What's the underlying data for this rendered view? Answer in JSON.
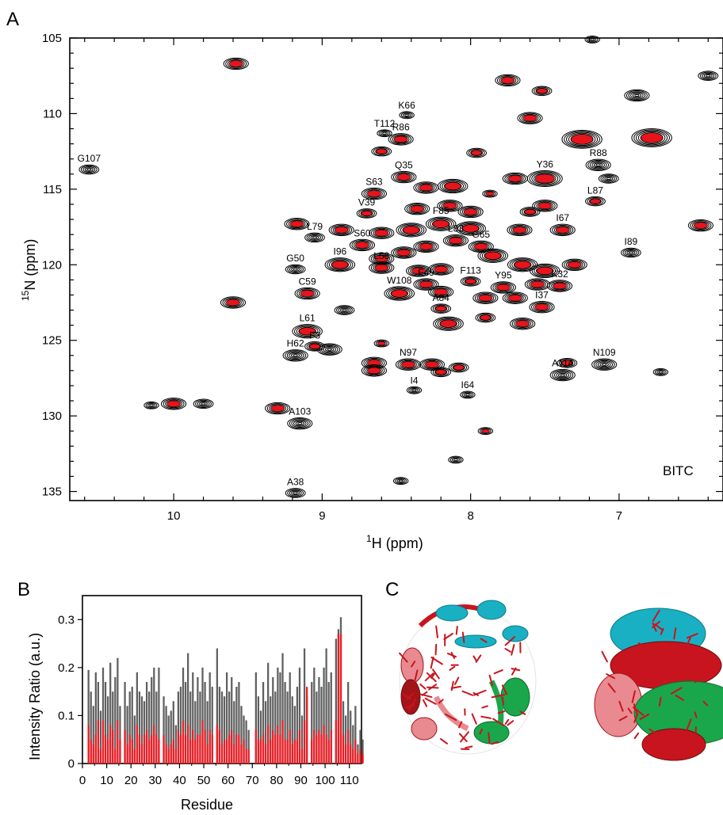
{
  "panels": {
    "a": "A",
    "b": "B",
    "c": "C"
  },
  "colors": {
    "ref": "#000000",
    "treated": "#e8141b",
    "bar_gray": "#606060",
    "bar_red": "#ee1c24",
    "helix_red": "#c8141e",
    "helix_cyan": "#1ab0c4",
    "helix_green": "#1aa64a",
    "helix_pink": "#e88a90",
    "helix_dark": "#a31419"
  },
  "chart_data": [
    {
      "type": "scatter",
      "title": "",
      "annotation": "BITC",
      "xlabel": {
        "main": "H",
        "sup": "1",
        "unit": "  (ppm)"
      },
      "ylabel": {
        "sup": "15",
        "main": "N  (ppm)"
      },
      "xlim": [
        10.7,
        6.3
      ],
      "ylim": [
        135.6,
        105
      ],
      "xticks": [
        "10",
        "9",
        "8",
        "7"
      ],
      "yticks": [
        "105",
        "110",
        "115",
        "120",
        "125",
        "130",
        "135"
      ],
      "peaks": [
        {
          "x": 10.57,
          "y": 113.7,
          "w": 2,
          "red": false,
          "label": "G107"
        },
        {
          "x": 9.58,
          "y": 106.7,
          "w": 3,
          "red": true,
          "label": ""
        },
        {
          "x": 8.43,
          "y": 110.1,
          "w": 1,
          "red": false,
          "label": "K66"
        },
        {
          "x": 8.58,
          "y": 111.3,
          "w": 1,
          "red": false,
          "label": "T112"
        },
        {
          "x": 8.47,
          "y": 111.7,
          "w": 3,
          "red": true,
          "label": "R86"
        },
        {
          "x": 8.6,
          "y": 112.5,
          "w": 2,
          "red": true,
          "label": ""
        },
        {
          "x": 7.96,
          "y": 112.6,
          "w": 2,
          "red": true,
          "label": ""
        },
        {
          "x": 7.75,
          "y": 107.8,
          "w": 3,
          "red": true,
          "label": ""
        },
        {
          "x": 7.52,
          "y": 108.5,
          "w": 2,
          "red": true,
          "label": ""
        },
        {
          "x": 7.6,
          "y": 110.3,
          "w": 3,
          "red": true,
          "label": ""
        },
        {
          "x": 7.25,
          "y": 111.7,
          "w": 6,
          "red": true,
          "label": ""
        },
        {
          "x": 6.78,
          "y": 111.6,
          "w": 6,
          "red": true,
          "label": ""
        },
        {
          "x": 6.88,
          "y": 108.8,
          "w": 3,
          "red": false,
          "label": ""
        },
        {
          "x": 6.4,
          "y": 107.5,
          "w": 2,
          "red": false,
          "label": ""
        },
        {
          "x": 6.45,
          "y": 117.4,
          "w": 3,
          "red": true,
          "label": ""
        },
        {
          "x": 7.14,
          "y": 113.4,
          "w": 3,
          "red": false,
          "label": "R88"
        },
        {
          "x": 7.07,
          "y": 114.3,
          "w": 2,
          "red": false,
          "label": ""
        },
        {
          "x": 7.5,
          "y": 114.3,
          "w": 5,
          "red": true,
          "label": "Y36"
        },
        {
          "x": 7.7,
          "y": 114.3,
          "w": 3,
          "red": true,
          "label": ""
        },
        {
          "x": 7.16,
          "y": 115.8,
          "w": 2,
          "red": true,
          "label": "L87"
        },
        {
          "x": 8.45,
          "y": 114.2,
          "w": 3,
          "red": true,
          "label": "Q35"
        },
        {
          "x": 8.3,
          "y": 114.9,
          "w": 3,
          "red": true,
          "label": ""
        },
        {
          "x": 8.12,
          "y": 114.8,
          "w": 4,
          "red": true,
          "label": ""
        },
        {
          "x": 8.65,
          "y": 115.3,
          "w": 3,
          "red": true,
          "label": "S63"
        },
        {
          "x": 8.36,
          "y": 116.3,
          "w": 3,
          "red": true,
          "label": ""
        },
        {
          "x": 8.14,
          "y": 116.1,
          "w": 3,
          "red": true,
          "label": ""
        },
        {
          "x": 8.0,
          "y": 116.5,
          "w": 3,
          "red": true,
          "label": ""
        },
        {
          "x": 7.87,
          "y": 115.3,
          "w": 1,
          "red": true,
          "label": ""
        },
        {
          "x": 7.5,
          "y": 116.1,
          "w": 3,
          "red": true,
          "label": ""
        },
        {
          "x": 7.6,
          "y": 116.5,
          "w": 2,
          "red": true,
          "label": ""
        },
        {
          "x": 8.7,
          "y": 116.6,
          "w": 2,
          "red": true,
          "label": "V39"
        },
        {
          "x": 9.17,
          "y": 117.3,
          "w": 3,
          "red": true,
          "label": ""
        },
        {
          "x": 9.05,
          "y": 118.2,
          "w": 2,
          "red": false,
          "label": "L79"
        },
        {
          "x": 8.87,
          "y": 117.7,
          "w": 3,
          "red": true,
          "label": ""
        },
        {
          "x": 8.6,
          "y": 117.9,
          "w": 3,
          "red": true,
          "label": ""
        },
        {
          "x": 8.4,
          "y": 117.7,
          "w": 4,
          "red": true,
          "label": ""
        },
        {
          "x": 8.2,
          "y": 117.3,
          "w": 4,
          "red": true,
          "label": "F85"
        },
        {
          "x": 8.0,
          "y": 117.6,
          "w": 4,
          "red": true,
          "label": ""
        },
        {
          "x": 7.67,
          "y": 117.7,
          "w": 3,
          "red": true,
          "label": ""
        },
        {
          "x": 7.38,
          "y": 117.7,
          "w": 3,
          "red": true,
          "label": "I67"
        },
        {
          "x": 8.73,
          "y": 118.7,
          "w": 3,
          "red": true,
          "label": "S60"
        },
        {
          "x": 8.3,
          "y": 118.8,
          "w": 3,
          "red": true,
          "label": ""
        },
        {
          "x": 8.1,
          "y": 118.4,
          "w": 3,
          "red": true,
          "label": "L83"
        },
        {
          "x": 7.93,
          "y": 118.8,
          "w": 3,
          "red": true,
          "label": "G65"
        },
        {
          "x": 8.45,
          "y": 119.2,
          "w": 3,
          "red": true,
          "label": ""
        },
        {
          "x": 8.6,
          "y": 119.6,
          "w": 3,
          "red": true,
          "label": ""
        },
        {
          "x": 7.85,
          "y": 119.4,
          "w": 4,
          "red": true,
          "label": ""
        },
        {
          "x": 8.88,
          "y": 120.0,
          "w": 4,
          "red": true,
          "label": "I96"
        },
        {
          "x": 8.6,
          "y": 120.2,
          "w": 3,
          "red": true,
          "label": "L58"
        },
        {
          "x": 9.18,
          "y": 120.3,
          "w": 2,
          "red": false,
          "label": "G50"
        },
        {
          "x": 8.35,
          "y": 120.4,
          "w": 3,
          "red": true,
          "label": ""
        },
        {
          "x": 8.2,
          "y": 120.3,
          "w": 3,
          "red": true,
          "label": ""
        },
        {
          "x": 7.65,
          "y": 120.0,
          "w": 4,
          "red": true,
          "label": ""
        },
        {
          "x": 7.5,
          "y": 120.4,
          "w": 4,
          "red": true,
          "label": ""
        },
        {
          "x": 7.3,
          "y": 120.0,
          "w": 3,
          "red": true,
          "label": ""
        },
        {
          "x": 6.92,
          "y": 119.2,
          "w": 2,
          "red": false,
          "label": "I89"
        },
        {
          "x": 8.3,
          "y": 121.3,
          "w": 3,
          "red": true,
          "label": "F49"
        },
        {
          "x": 8.0,
          "y": 121.1,
          "w": 2,
          "red": true,
          "label": "F113"
        },
        {
          "x": 7.78,
          "y": 121.5,
          "w": 3,
          "red": true,
          "label": "Y95"
        },
        {
          "x": 7.55,
          "y": 121.3,
          "w": 3,
          "red": true,
          "label": ""
        },
        {
          "x": 7.4,
          "y": 121.4,
          "w": 3,
          "red": true,
          "label": "K32"
        },
        {
          "x": 7.9,
          "y": 122.2,
          "w": 3,
          "red": true,
          "label": ""
        },
        {
          "x": 7.7,
          "y": 122.2,
          "w": 3,
          "red": true,
          "label": ""
        },
        {
          "x": 7.52,
          "y": 122.8,
          "w": 3,
          "red": true,
          "label": "I37"
        },
        {
          "x": 9.1,
          "y": 121.9,
          "w": 3,
          "red": true,
          "label": "C59"
        },
        {
          "x": 8.48,
          "y": 121.9,
          "w": 4,
          "red": true,
          "label": "W108"
        },
        {
          "x": 8.2,
          "y": 121.8,
          "w": 3,
          "red": true,
          "label": ""
        },
        {
          "x": 9.6,
          "y": 122.5,
          "w": 3,
          "red": true,
          "label": ""
        },
        {
          "x": 8.85,
          "y": 123.0,
          "w": 2,
          "red": false,
          "label": ""
        },
        {
          "x": 8.2,
          "y": 122.9,
          "w": 2,
          "red": true,
          "label": "A84"
        },
        {
          "x": 8.15,
          "y": 123.9,
          "w": 4,
          "red": true,
          "label": ""
        },
        {
          "x": 7.9,
          "y": 123.5,
          "w": 2,
          "red": true,
          "label": ""
        },
        {
          "x": 7.65,
          "y": 123.9,
          "w": 3,
          "red": true,
          "label": ""
        },
        {
          "x": 9.1,
          "y": 124.4,
          "w": 4,
          "red": true,
          "label": "L61"
        },
        {
          "x": 8.95,
          "y": 125.6,
          "w": 3,
          "red": false,
          "label": ""
        },
        {
          "x": 9.05,
          "y": 125.4,
          "w": 2,
          "red": true,
          "label": "F3"
        },
        {
          "x": 9.18,
          "y": 126.0,
          "w": 3,
          "red": false,
          "label": "H62"
        },
        {
          "x": 8.65,
          "y": 126.5,
          "w": 3,
          "red": true,
          "label": ""
        },
        {
          "x": 8.65,
          "y": 127.0,
          "w": 3,
          "red": true,
          "label": ""
        },
        {
          "x": 8.42,
          "y": 126.6,
          "w": 3,
          "red": true,
          "label": "N97"
        },
        {
          "x": 8.26,
          "y": 126.6,
          "w": 3,
          "red": true,
          "label": ""
        },
        {
          "x": 8.2,
          "y": 127.1,
          "w": 2,
          "red": true,
          "label": ""
        },
        {
          "x": 8.08,
          "y": 126.8,
          "w": 2,
          "red": true,
          "label": ""
        },
        {
          "x": 7.35,
          "y": 126.5,
          "w": 2,
          "red": true,
          "label": ""
        },
        {
          "x": 7.38,
          "y": 127.3,
          "w": 3,
          "red": false,
          "label": "A114"
        },
        {
          "x": 7.1,
          "y": 126.6,
          "w": 3,
          "red": false,
          "label": "N109"
        },
        {
          "x": 6.72,
          "y": 127.1,
          "w": 1,
          "red": false,
          "label": ""
        },
        {
          "x": 8.6,
          "y": 125.2,
          "w": 1,
          "red": true,
          "label": ""
        },
        {
          "x": 8.38,
          "y": 128.3,
          "w": 1,
          "red": false,
          "label": "I4"
        },
        {
          "x": 8.02,
          "y": 128.6,
          "w": 1,
          "red": false,
          "label": "I64"
        },
        {
          "x": 10.0,
          "y": 129.2,
          "w": 3,
          "red": true,
          "label": ""
        },
        {
          "x": 9.8,
          "y": 129.2,
          "w": 2,
          "red": false,
          "label": ""
        },
        {
          "x": 10.15,
          "y": 129.3,
          "w": 1,
          "red": false,
          "label": ""
        },
        {
          "x": 9.3,
          "y": 129.5,
          "w": 3,
          "red": true,
          "label": ""
        },
        {
          "x": 9.15,
          "y": 130.5,
          "w": 3,
          "red": false,
          "label": "A103"
        },
        {
          "x": 7.9,
          "y": 131.0,
          "w": 1,
          "red": true,
          "label": ""
        },
        {
          "x": 8.1,
          "y": 132.9,
          "w": 1,
          "red": false,
          "label": ""
        },
        {
          "x": 8.47,
          "y": 134.3,
          "w": 1,
          "red": false,
          "label": ""
        },
        {
          "x": 9.18,
          "y": 135.1,
          "w": 2,
          "red": false,
          "label": "A38"
        },
        {
          "x": 7.18,
          "y": 105.1,
          "w": 1,
          "red": false,
          "label": ""
        }
      ]
    },
    {
      "type": "bar",
      "title": "",
      "xlabel": "Residue",
      "ylabel": "Intensity Ratio (a.u.)",
      "xlim": [
        0,
        115
      ],
      "ylim": [
        0,
        0.35
      ],
      "xticks": [
        "0",
        "10",
        "20",
        "30",
        "40",
        "50",
        "60",
        "70",
        "80",
        "90",
        "100",
        "110"
      ],
      "yticks": [
        "0",
        "0.1",
        "0.2",
        "0.3"
      ],
      "series": [
        {
          "values": [
            0.0,
            0.0,
            0.195,
            0.15,
            0.12,
            0.19,
            0.17,
            0.11,
            0.2,
            0.17,
            0.14,
            0.21,
            0.15,
            0.18,
            0.22,
            0.12,
            0.0,
            0.17,
            0.12,
            0.15,
            0.16,
            0.1,
            0.19,
            0.15,
            0.14,
            0.13,
            0.17,
            0.15,
            0.18,
            0.2,
            0.15,
            0.2,
            0.0,
            0.14,
            0.12,
            0.1,
            0.11,
            0.13,
            0.08,
            0.15,
            0.16,
            0.2,
            0.17,
            0.23,
            0.15,
            0.19,
            0.13,
            0.18,
            0.15,
            0.2,
            0.17,
            0.13,
            0.19,
            0.16,
            0.0,
            0.24,
            0.16,
            0.15,
            0.14,
            0.19,
            0.15,
            0.18,
            0.13,
            0.16,
            0.17,
            0.12,
            0.1,
            0.09,
            0.07,
            0.0,
            0.0,
            0.19,
            0.14,
            0.11,
            0.17,
            0.13,
            0.21,
            0.14,
            0.18,
            0.15,
            0.2,
            0.19,
            0.23,
            0.17,
            0.15,
            0.19,
            0.14,
            0.12,
            0.16,
            0.2,
            0.1,
            0.24,
            0.14,
            0.0,
            0.17,
            0.2,
            0.15,
            0.18,
            0.16,
            0.2,
            0.24,
            0.17,
            0.19,
            0.0,
            0.26,
            0.28,
            0.305,
            0.13,
            0.1,
            0.17,
            0.11,
            0.08,
            0.12,
            0.04,
            0.07,
            0.05
          ]
        },
        {
          "values": [
            0.0,
            0.0,
            0.08,
            0.05,
            0.04,
            0.06,
            0.09,
            0.03,
            0.09,
            0.06,
            0.05,
            0.08,
            0.07,
            0.03,
            0.09,
            0.05,
            0.0,
            0.07,
            0.04,
            0.06,
            0.05,
            0.03,
            0.08,
            0.06,
            0.04,
            0.06,
            0.07,
            0.05,
            0.06,
            0.08,
            0.06,
            0.05,
            0.0,
            0.06,
            0.04,
            0.03,
            0.04,
            0.05,
            0.03,
            0.07,
            0.06,
            0.09,
            0.06,
            0.08,
            0.05,
            0.07,
            0.05,
            0.06,
            0.06,
            0.09,
            0.07,
            0.04,
            0.07,
            0.06,
            0.0,
            0.08,
            0.07,
            0.04,
            0.05,
            0.05,
            0.06,
            0.07,
            0.04,
            0.06,
            0.06,
            0.04,
            0.05,
            0.03,
            0.03,
            0.0,
            0.0,
            0.07,
            0.05,
            0.05,
            0.06,
            0.04,
            0.08,
            0.05,
            0.07,
            0.06,
            0.08,
            0.06,
            0.09,
            0.05,
            0.05,
            0.07,
            0.04,
            0.05,
            0.05,
            0.07,
            0.03,
            0.09,
            0.16,
            0.0,
            0.05,
            0.07,
            0.06,
            0.07,
            0.06,
            0.08,
            0.06,
            0.05,
            0.07,
            0.0,
            0.09,
            0.27,
            0.27,
            0.06,
            0.04,
            0.07,
            0.04,
            0.03,
            0.05,
            0.02,
            0.03,
            0.02
          ]
        }
      ]
    }
  ],
  "structure": {
    "views": [
      "front",
      "side"
    ]
  }
}
